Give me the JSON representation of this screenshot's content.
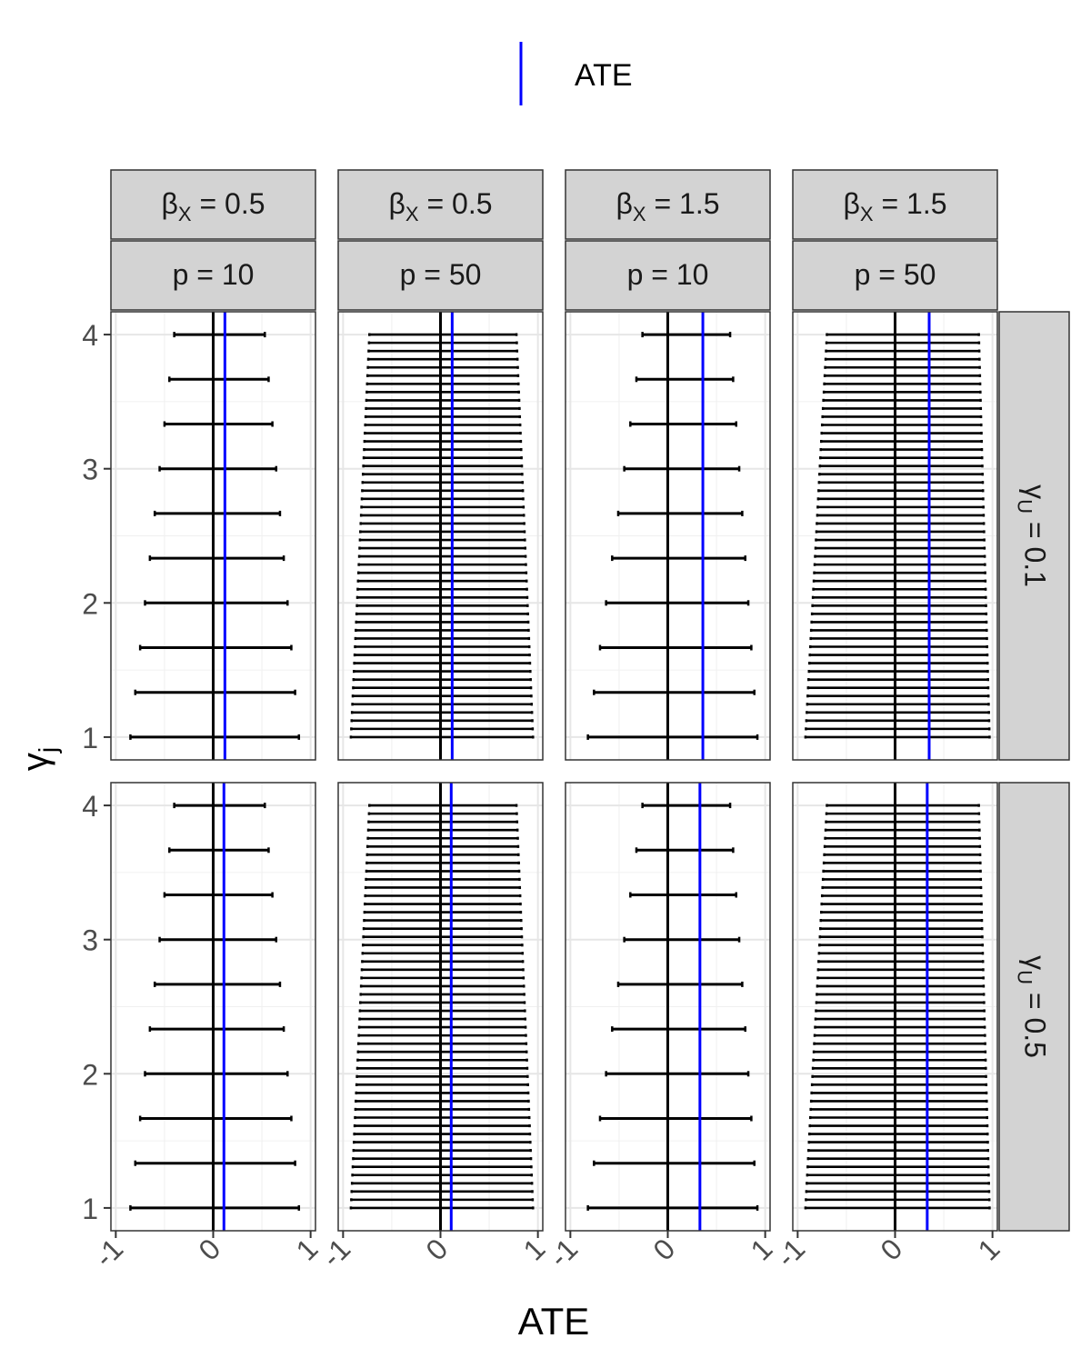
{
  "legend": {
    "label": "ATE",
    "color": "#0000ff"
  },
  "axes": {
    "xlabel": "ATE",
    "ylabel_main": "γ",
    "ylabel_sub": "j"
  },
  "chart_data": {
    "type": "errorbar",
    "xlabel": "ATE",
    "ylabel": "γj",
    "xlim": [
      -1.05,
      1.05
    ],
    "ylim": [
      0.83,
      4.17
    ],
    "x_ticks": [
      -1,
      0,
      1
    ],
    "y_ticks": [
      1,
      2,
      3,
      4
    ],
    "x_tick_labels": [
      "-1",
      "0",
      "1"
    ],
    "y_tick_labels": [
      "1",
      "2",
      "3",
      "4"
    ],
    "grid": true,
    "legend_position": "top",
    "reference_line_x": 0,
    "ate_color": "#0000ff",
    "columns": [
      {
        "strip_beta_main": "β",
        "strip_beta_sub": "X",
        "strip_beta_rest": " = 0.5",
        "strip_p": "p = 10",
        "p": 10,
        "beta_x": 0.5
      },
      {
        "strip_beta_main": "β",
        "strip_beta_sub": "X",
        "strip_beta_rest": " = 0.5",
        "strip_p": "p = 50",
        "p": 50,
        "beta_x": 0.5
      },
      {
        "strip_beta_main": "β",
        "strip_beta_sub": "X",
        "strip_beta_rest": " = 1.5",
        "strip_p": "p = 10",
        "p": 10,
        "beta_x": 1.5
      },
      {
        "strip_beta_main": "β",
        "strip_beta_sub": "X",
        "strip_beta_rest": " = 1.5",
        "strip_p": "p = 50",
        "p": 50,
        "beta_x": 1.5
      }
    ],
    "rows": [
      {
        "strip_main": "γ",
        "strip_sub": "U",
        "strip_rest": " = 0.1",
        "gamma_u": 0.1
      },
      {
        "strip_main": "γ",
        "strip_sub": "U",
        "strip_rest": " = 0.5",
        "gamma_u": 0.5
      }
    ],
    "panels": [
      {
        "row": 0,
        "col": 0,
        "ate": 0.12,
        "bars": {
          "y_start": 1,
          "y_end": 4,
          "n": 10,
          "lower_start": -0.85,
          "lower_end": -0.4,
          "upper_start": 0.88,
          "upper_end": 0.53
        }
      },
      {
        "row": 0,
        "col": 1,
        "ate": 0.12,
        "bars": {
          "y_start": 1,
          "y_end": 4,
          "n": 50,
          "lower_start": -0.92,
          "lower_end": -0.73,
          "upper_start": 0.95,
          "upper_end": 0.78
        }
      },
      {
        "row": 0,
        "col": 2,
        "ate": 0.36,
        "bars": {
          "y_start": 1,
          "y_end": 4,
          "n": 10,
          "lower_start": -0.82,
          "lower_end": -0.26,
          "upper_start": 0.92,
          "upper_end": 0.64
        }
      },
      {
        "row": 0,
        "col": 3,
        "ate": 0.35,
        "bars": {
          "y_start": 1,
          "y_end": 4,
          "n": 50,
          "lower_start": -0.92,
          "lower_end": -0.7,
          "upper_start": 0.97,
          "upper_end": 0.86
        }
      },
      {
        "row": 1,
        "col": 0,
        "ate": 0.11,
        "bars": {
          "y_start": 1,
          "y_end": 4,
          "n": 10,
          "lower_start": -0.85,
          "lower_end": -0.4,
          "upper_start": 0.88,
          "upper_end": 0.53
        }
      },
      {
        "row": 1,
        "col": 1,
        "ate": 0.11,
        "bars": {
          "y_start": 1,
          "y_end": 4,
          "n": 50,
          "lower_start": -0.92,
          "lower_end": -0.73,
          "upper_start": 0.95,
          "upper_end": 0.78
        }
      },
      {
        "row": 1,
        "col": 2,
        "ate": 0.33,
        "bars": {
          "y_start": 1,
          "y_end": 4,
          "n": 10,
          "lower_start": -0.82,
          "lower_end": -0.26,
          "upper_start": 0.92,
          "upper_end": 0.64
        }
      },
      {
        "row": 1,
        "col": 3,
        "ate": 0.33,
        "bars": {
          "y_start": 1,
          "y_end": 4,
          "n": 50,
          "lower_start": -0.92,
          "lower_end": -0.7,
          "upper_start": 0.97,
          "upper_end": 0.86
        }
      }
    ]
  }
}
